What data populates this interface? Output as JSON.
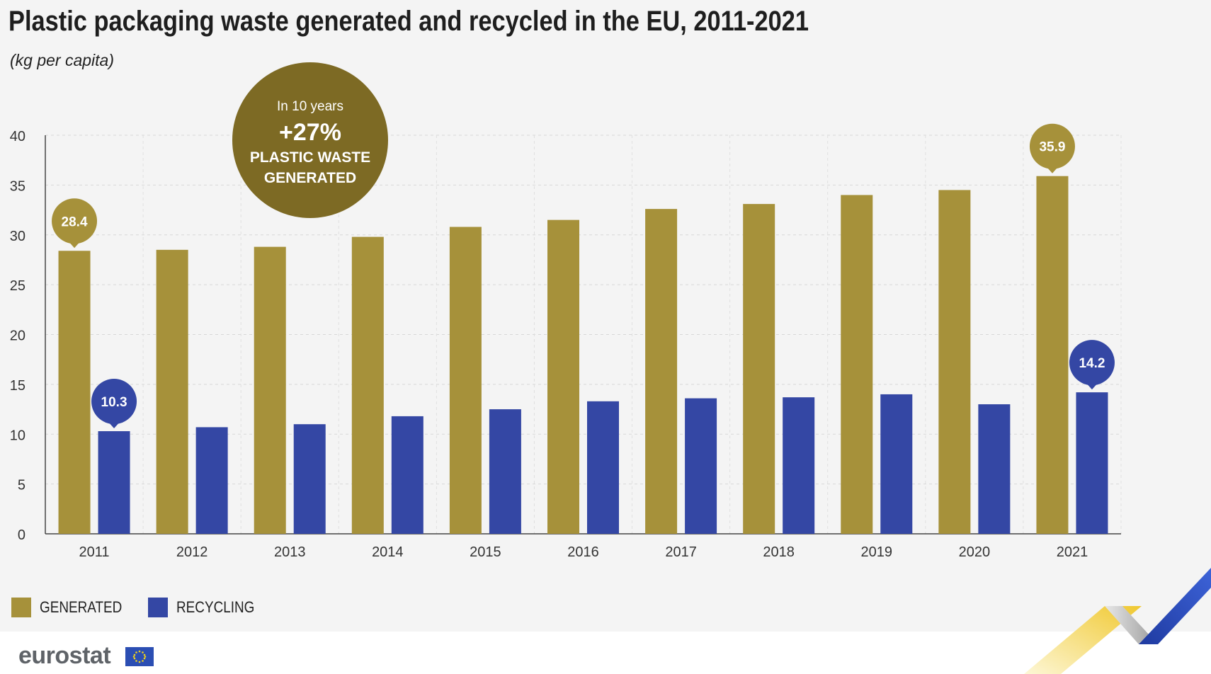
{
  "title": "Plastic packaging waste generated and recycled in the EU, 2011-2021",
  "subtitle": "(kg per capita)",
  "callout": {
    "line1": "In 10 years",
    "line2": "+27%",
    "line3": "PLASTIC WASTE",
    "line4": "GENERATED"
  },
  "legend": {
    "generated": "GENERATED",
    "recycling": "RECYCLING"
  },
  "brand": {
    "name": "eurostat"
  },
  "colors": {
    "generated": "#a6913a",
    "recycling": "#3447a4",
    "callout": "#7d6a24",
    "background": "#f4f4f4"
  },
  "chart_data": {
    "type": "bar",
    "categories": [
      "2011",
      "2012",
      "2013",
      "2014",
      "2015",
      "2016",
      "2017",
      "2018",
      "2019",
      "2020",
      "2021"
    ],
    "series": [
      {
        "name": "GENERATED",
        "values": [
          28.4,
          28.5,
          28.8,
          29.8,
          30.8,
          31.5,
          32.6,
          33.1,
          34.0,
          34.5,
          35.9
        ]
      },
      {
        "name": "RECYCLING",
        "values": [
          10.3,
          10.7,
          11.0,
          11.8,
          12.5,
          13.3,
          13.6,
          13.7,
          14.0,
          13.0,
          14.2
        ]
      }
    ],
    "data_labels": [
      {
        "series": "GENERATED",
        "category": "2011",
        "text": "28.4"
      },
      {
        "series": "RECYCLING",
        "category": "2011",
        "text": "10.3"
      },
      {
        "series": "GENERATED",
        "category": "2021",
        "text": "35.9"
      },
      {
        "series": "RECYCLING",
        "category": "2021",
        "text": "14.2"
      }
    ],
    "yticks": [
      0,
      5,
      10,
      15,
      20,
      25,
      30,
      35,
      40
    ],
    "ylim": [
      0,
      40
    ],
    "xlabel": "",
    "ylabel": "",
    "grid": true,
    "legend_position": "bottom-left"
  }
}
